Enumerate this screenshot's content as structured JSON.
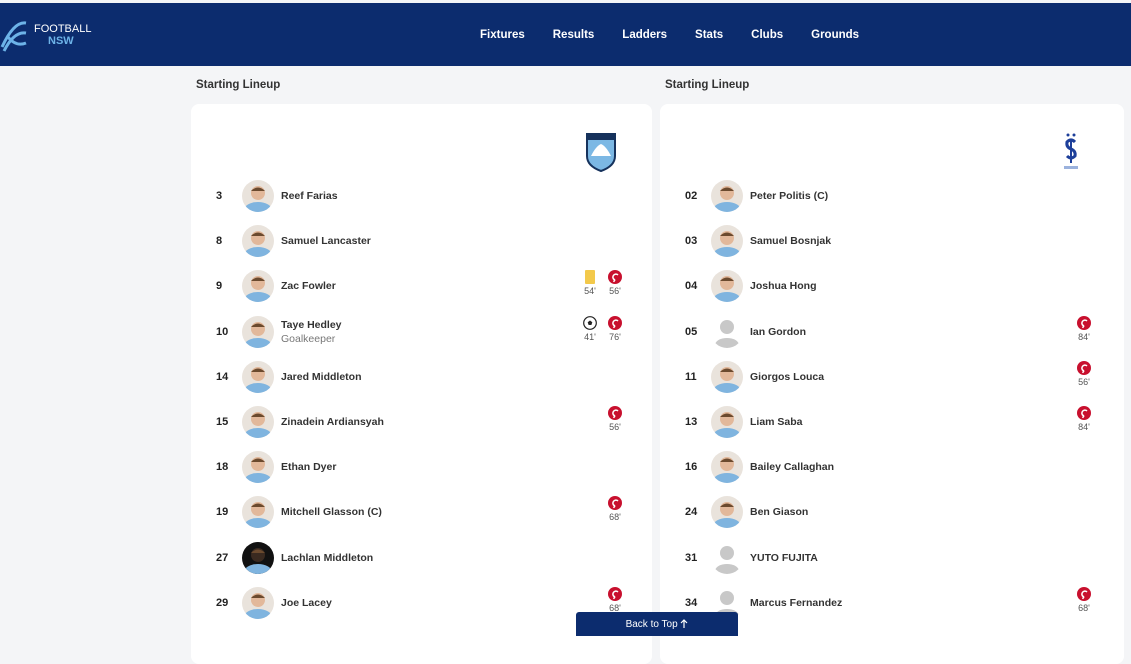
{
  "header": {
    "logo": {
      "line1": "FOOTBALL",
      "line2": "NSW"
    },
    "nav": [
      "Fixtures",
      "Results",
      "Ladders",
      "Stats",
      "Clubs",
      "Grounds"
    ]
  },
  "teams": [
    {
      "title": "Starting Lineup",
      "crest": "sky",
      "players": [
        {
          "number": "3",
          "name": "Reef Farias",
          "avatar": "photo",
          "events": []
        },
        {
          "number": "8",
          "name": "Samuel Lancaster",
          "avatar": "photo",
          "events": []
        },
        {
          "number": "9",
          "name": "Zac Fowler",
          "avatar": "photo",
          "events": [
            {
              "icon": "yellow-card",
              "minute": "54'"
            },
            {
              "icon": "substitution",
              "minute": "56'"
            }
          ]
        },
        {
          "number": "10",
          "name": "Taye Hedley",
          "role": "Goalkeeper",
          "avatar": "photo",
          "events": [
            {
              "icon": "goal",
              "minute": "41'"
            },
            {
              "icon": "substitution",
              "minute": "76'"
            }
          ]
        },
        {
          "number": "14",
          "name": "Jared Middleton",
          "avatar": "photo",
          "events": []
        },
        {
          "number": "15",
          "name": "Zinadein Ardiansyah",
          "avatar": "photo",
          "events": [
            {
              "icon": "substitution",
              "minute": "56'"
            }
          ]
        },
        {
          "number": "18",
          "name": "Ethan Dyer",
          "avatar": "photo",
          "events": []
        },
        {
          "number": "19",
          "name": "Mitchell Glasson (C)",
          "avatar": "photo",
          "events": [
            {
              "icon": "substitution",
              "minute": "68'"
            }
          ]
        },
        {
          "number": "27",
          "name": "Lachlan Middleton",
          "avatar": "photo-dark",
          "events": []
        },
        {
          "number": "29",
          "name": "Joe Lacey",
          "avatar": "photo",
          "events": [
            {
              "icon": "substitution",
              "minute": "68'"
            }
          ]
        }
      ]
    },
    {
      "title": "Starting Lineup",
      "crest": "olympic",
      "players": [
        {
          "number": "02",
          "name": "Peter Politis (C)",
          "avatar": "photo",
          "events": []
        },
        {
          "number": "03",
          "name": "Samuel Bosnjak",
          "avatar": "photo",
          "events": []
        },
        {
          "number": "04",
          "name": "Joshua Hong",
          "avatar": "photo",
          "events": []
        },
        {
          "number": "05",
          "name": "Ian Gordon",
          "avatar": "placeholder",
          "events": [
            {
              "icon": "substitution",
              "minute": "84'"
            }
          ]
        },
        {
          "number": "11",
          "name": "Giorgos Louca",
          "avatar": "photo",
          "events": [
            {
              "icon": "substitution",
              "minute": "56'"
            }
          ]
        },
        {
          "number": "13",
          "name": "Liam Saba",
          "avatar": "photo",
          "events": [
            {
              "icon": "substitution",
              "minute": "84'"
            }
          ]
        },
        {
          "number": "16",
          "name": "Bailey Callaghan",
          "avatar": "photo",
          "events": []
        },
        {
          "number": "24",
          "name": "Ben Giason",
          "avatar": "photo",
          "events": []
        },
        {
          "number": "31",
          "name": "YUTO FUJITA",
          "avatar": "placeholder",
          "events": []
        },
        {
          "number": "34",
          "name": "Marcus Fernandez",
          "avatar": "placeholder",
          "events": [
            {
              "icon": "substitution",
              "minute": "68'"
            }
          ]
        }
      ]
    }
  ],
  "back_to_top": "Back to Top"
}
